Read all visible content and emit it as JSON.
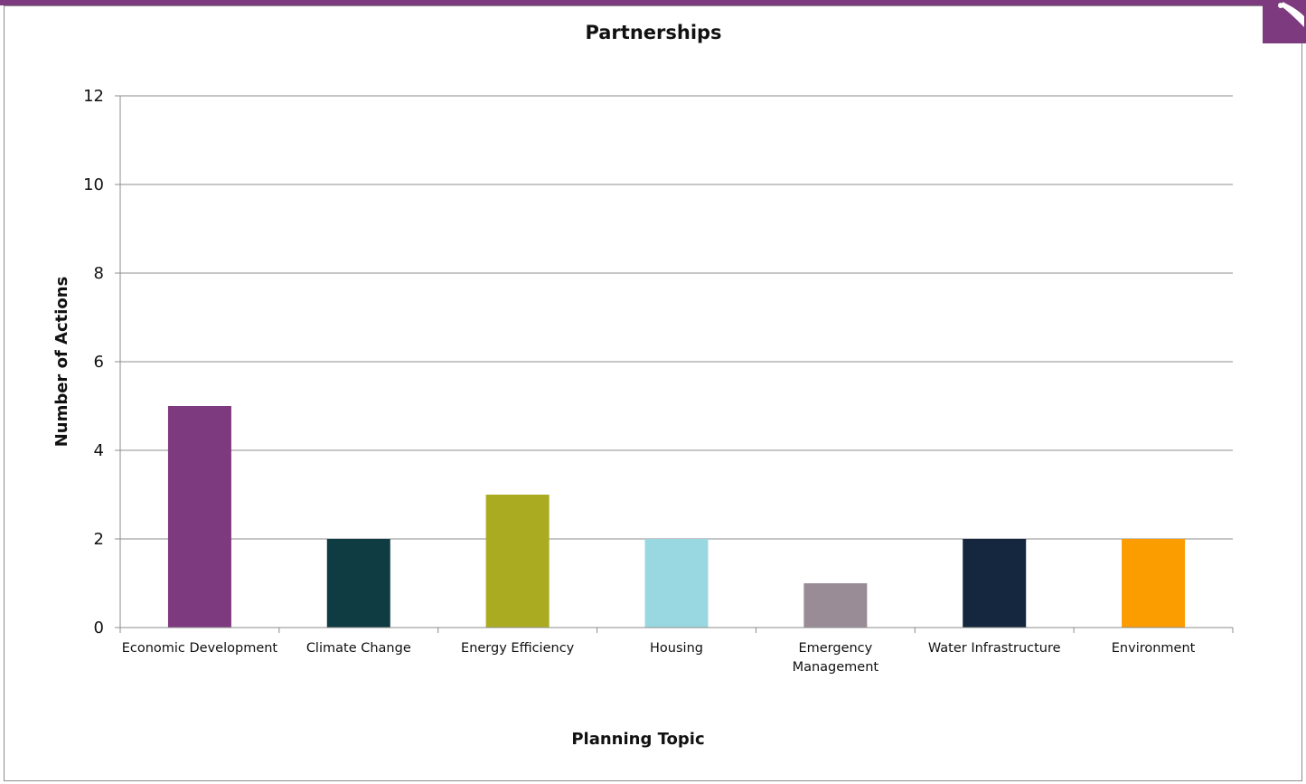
{
  "colors": {
    "brand": "#7e3a7e",
    "frame": "#8c8c8c",
    "grid": "#8c8c8c"
  },
  "chart_data": {
    "type": "bar",
    "title": "Partnerships",
    "xlabel": "Planning Topic",
    "ylabel": "Number of Actions",
    "categories": [
      "Economic Development",
      "Climate Change",
      "Energy Efficiency",
      "Housing",
      "Emergency Management",
      "Water Infrastructure",
      "Environment"
    ],
    "category_label_lines": [
      [
        "Economic Development"
      ],
      [
        "Climate Change"
      ],
      [
        "Energy Efficiency"
      ],
      [
        "Housing"
      ],
      [
        "Emergency",
        "Management"
      ],
      [
        "Water Infrastructure"
      ],
      [
        "Environment"
      ]
    ],
    "values": [
      5,
      2,
      3,
      2,
      1,
      2,
      2
    ],
    "bar_colors": [
      "#7e3a7e",
      "#0f3b42",
      "#abab22",
      "#99d8e0",
      "#9a8c97",
      "#15273e",
      "#fb9c00"
    ],
    "ylim": [
      0,
      12
    ],
    "yticks": [
      0,
      2,
      4,
      6,
      8,
      10,
      12
    ],
    "grid": true,
    "legend": "none"
  }
}
